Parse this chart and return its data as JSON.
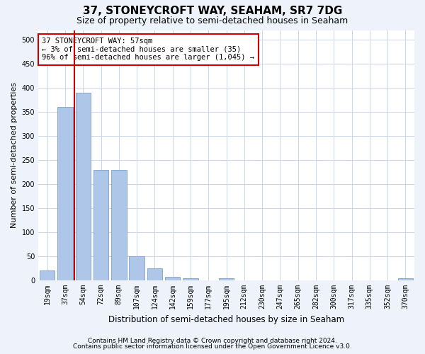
{
  "title": "37, STONEYCROFT WAY, SEAHAM, SR7 7DG",
  "subtitle": "Size of property relative to semi-detached houses in Seaham",
  "xlabel": "Distribution of semi-detached houses by size in Seaham",
  "ylabel": "Number of semi-detached properties",
  "categories": [
    "19sqm",
    "37sqm",
    "54sqm",
    "72sqm",
    "89sqm",
    "107sqm",
    "124sqm",
    "142sqm",
    "159sqm",
    "177sqm",
    "195sqm",
    "212sqm",
    "230sqm",
    "247sqm",
    "265sqm",
    "282sqm",
    "300sqm",
    "317sqm",
    "335sqm",
    "352sqm",
    "370sqm"
  ],
  "values": [
    20,
    360,
    390,
    230,
    230,
    50,
    25,
    8,
    5,
    0,
    5,
    0,
    0,
    0,
    0,
    0,
    0,
    0,
    0,
    0,
    5
  ],
  "bar_color": "#aec6e8",
  "bar_edge_color": "#7a9fcb",
  "vline_x": 1.5,
  "vline_color": "#cc0000",
  "annotation_text": "37 STONEYCROFT WAY: 57sqm\n← 3% of semi-detached houses are smaller (35)\n96% of semi-detached houses are larger (1,045) →",
  "annotation_box_edgecolor": "#cc0000",
  "annotation_box_facecolor": "#ffffff",
  "ylim": [
    0,
    520
  ],
  "yticks": [
    0,
    50,
    100,
    150,
    200,
    250,
    300,
    350,
    400,
    450,
    500
  ],
  "footer1": "Contains HM Land Registry data © Crown copyright and database right 2024.",
  "footer2": "Contains public sector information licensed under the Open Government Licence v3.0.",
  "bg_color": "#eef2fb",
  "plot_bg_color": "#ffffff",
  "grid_color": "#c8d4e8",
  "title_fontsize": 11,
  "subtitle_fontsize": 9,
  "axis_label_fontsize": 8,
  "tick_fontsize": 7,
  "footer_fontsize": 6.5
}
